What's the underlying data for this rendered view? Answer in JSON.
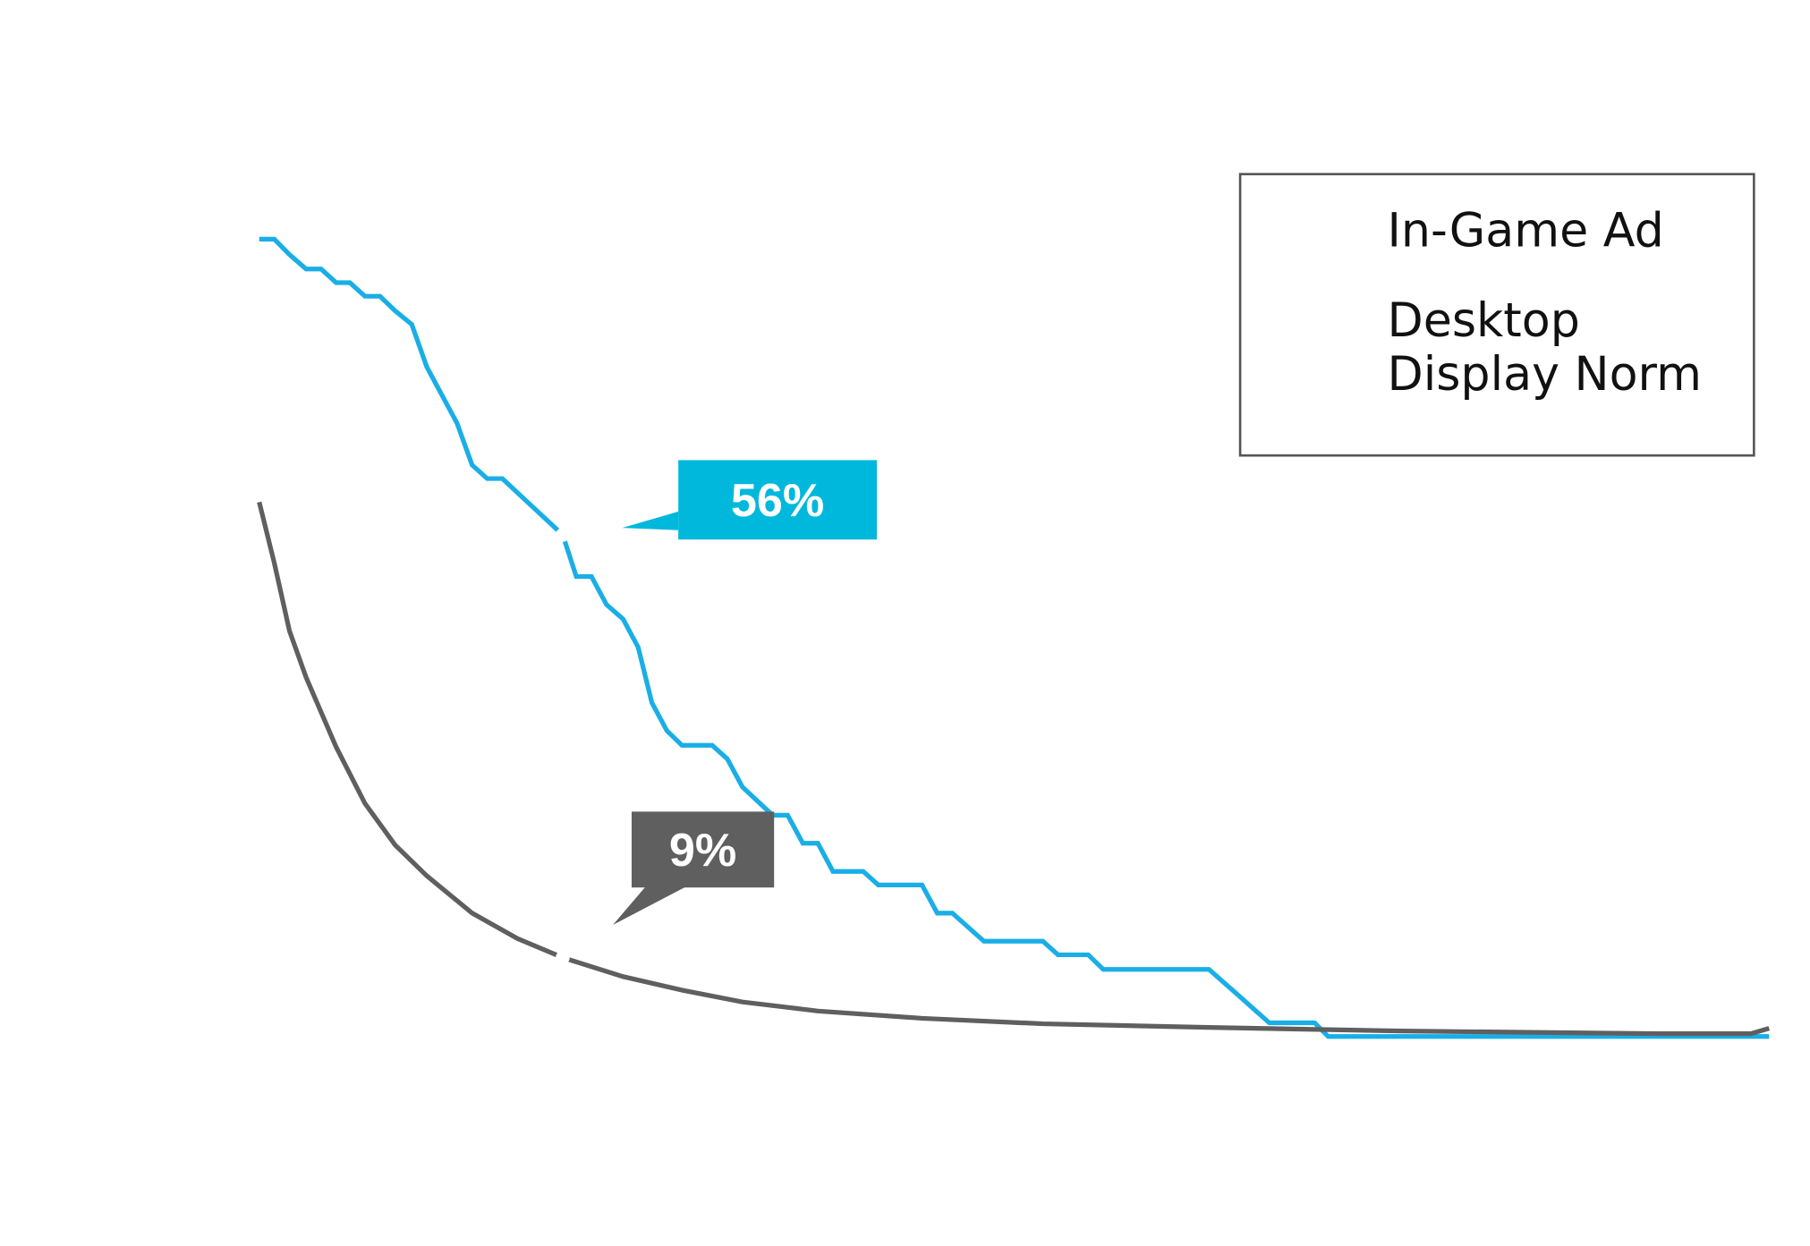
{
  "chart_data": {
    "type": "line",
    "xlim": [
      0,
      100
    ],
    "ylim": [
      0,
      100
    ],
    "series": [
      {
        "name": "In-Game Ad",
        "color": "#1aaee6",
        "x": [
          0,
          1.0,
          2.0,
          3.1,
          4.1,
          5.1,
          6.0,
          7.0,
          8.0,
          9.0,
          10.1,
          11.1,
          13.1,
          14.1,
          15.1,
          16.1,
          18.1,
          20.1,
          21.0,
          22.0,
          23.0,
          24.1,
          25.1,
          26.0,
          27.0,
          28.0,
          30.0,
          31.0,
          32.0,
          34.0,
          35.0,
          36.0,
          37.0,
          38.0,
          40.0,
          41.0,
          43.9,
          44.9,
          45.9,
          48.0,
          51.9,
          52.9,
          54.9,
          55.9,
          62.9,
          64.8,
          66.9,
          69.9,
          70.8,
          100
        ],
        "values": [
          88.2,
          88.2,
          86.5,
          84.9,
          84.9,
          83.4,
          83.4,
          81.9,
          81.9,
          80.3,
          78.8,
          74.1,
          67.9,
          63.3,
          61.8,
          61.8,
          58.7,
          55.6,
          51.0,
          51.0,
          47.9,
          46.3,
          43.2,
          37.1,
          34.0,
          32.4,
          32.4,
          30.9,
          27.8,
          24.7,
          24.7,
          21.6,
          21.6,
          18.5,
          18.5,
          17.0,
          17.0,
          13.9,
          13.9,
          10.8,
          10.8,
          9.3,
          9.3,
          7.7,
          7.7,
          4.9,
          1.8,
          1.8,
          0.3,
          0.3
        ]
      },
      {
        "name": "Desktop Display Norm",
        "color": "#5f5f5f",
        "x": [
          0,
          1.0,
          2.0,
          3.1,
          5.1,
          7.0,
          9.0,
          11.1,
          14.1,
          17.1,
          20.1,
          24.1,
          28.0,
          32.0,
          37.0,
          43.9,
          51.9,
          62.9,
          75.6,
          92.7,
          98.8,
          100
        ],
        "values": [
          59.2,
          52.5,
          45.0,
          39.9,
          32.2,
          26.0,
          21.4,
          18.0,
          13.9,
          11.1,
          9.0,
          6.9,
          5.4,
          4.1,
          3.1,
          2.3,
          1.7,
          1.3,
          0.9,
          0.6,
          0.6,
          1.2
        ]
      }
    ],
    "annotations": [
      {
        "text": "56%",
        "series": 0,
        "x": 20.1,
        "color": "#00b8dc"
      },
      {
        "text": "9%",
        "series": 1,
        "x": 20.1,
        "color": "#5f5f5f"
      }
    ]
  }
}
